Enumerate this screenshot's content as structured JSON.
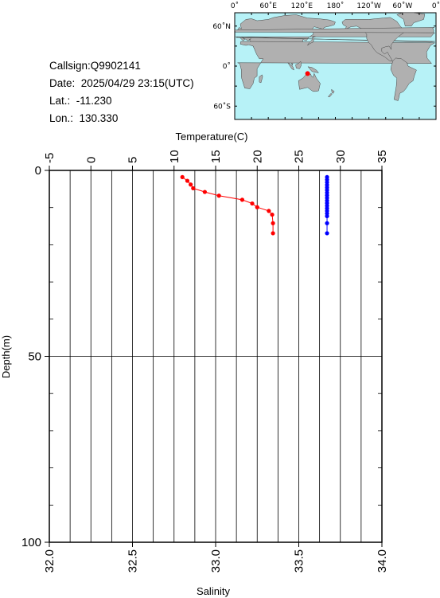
{
  "station": {
    "callsign": "Callsign:Q9902141",
    "date": "Date:  2025/04/29 23:15(UTC)",
    "lat": "Lat.:  -11.230",
    "lon": "Lon.:  130.330"
  },
  "map": {
    "lon_labels": [
      "0˚",
      "60˚E",
      "120˚E",
      "180˚",
      "120˚W",
      "60˚W",
      "0˚"
    ],
    "lat_labels": [
      "60˚N",
      "0˚",
      "60˚S"
    ],
    "ocean_color": "#b7f2f7",
    "land_color": "#b0b0b0",
    "marker_color": "#ff0000",
    "marker_lat": -11.23,
    "marker_lon": 130.33
  },
  "chart_data": {
    "type": "scatter",
    "top_axis": {
      "label": "Temperature(C)",
      "range": [
        -5,
        35
      ],
      "ticks": [
        "-5",
        "0",
        "5",
        "10",
        "15",
        "20",
        "25",
        "30",
        "35"
      ]
    },
    "bottom_axis": {
      "label": "Salinity",
      "range": [
        32.0,
        34.0
      ],
      "ticks": [
        "32.0",
        "32.5",
        "33.0",
        "33.5",
        "34.0"
      ]
    },
    "y_axis": {
      "label": "Depth(m)",
      "range": [
        0,
        100
      ],
      "inverted": true,
      "ticks": [
        "0",
        "50",
        "100"
      ]
    },
    "grid": true,
    "series": [
      {
        "color": "#ff0000",
        "axis": "temperature",
        "points": [
          [
            11.0,
            1.8
          ],
          [
            11.6,
            2.8
          ],
          [
            12.0,
            3.8
          ],
          [
            12.3,
            4.8
          ],
          [
            13.7,
            5.8
          ],
          [
            15.4,
            6.8
          ],
          [
            18.2,
            7.9
          ],
          [
            19.4,
            8.9
          ],
          [
            20.0,
            9.9
          ],
          [
            21.4,
            10.9
          ],
          [
            21.8,
            11.9
          ],
          [
            21.9,
            14.2
          ],
          [
            21.9,
            16.9
          ]
        ]
      },
      {
        "color": "#0000ff",
        "axis": "salinity",
        "points": [
          [
            33.67,
            1.8
          ],
          [
            33.67,
            2.5
          ],
          [
            33.67,
            3.2
          ],
          [
            33.67,
            3.9
          ],
          [
            33.67,
            4.6
          ],
          [
            33.67,
            5.3
          ],
          [
            33.67,
            6.0
          ],
          [
            33.67,
            6.7
          ],
          [
            33.67,
            7.4
          ],
          [
            33.67,
            8.1
          ],
          [
            33.67,
            8.8
          ],
          [
            33.67,
            9.5
          ],
          [
            33.67,
            10.2
          ],
          [
            33.67,
            10.9
          ],
          [
            33.67,
            11.6
          ],
          [
            33.67,
            12.3
          ],
          [
            33.67,
            14.2
          ],
          [
            33.67,
            16.9
          ]
        ]
      }
    ]
  }
}
